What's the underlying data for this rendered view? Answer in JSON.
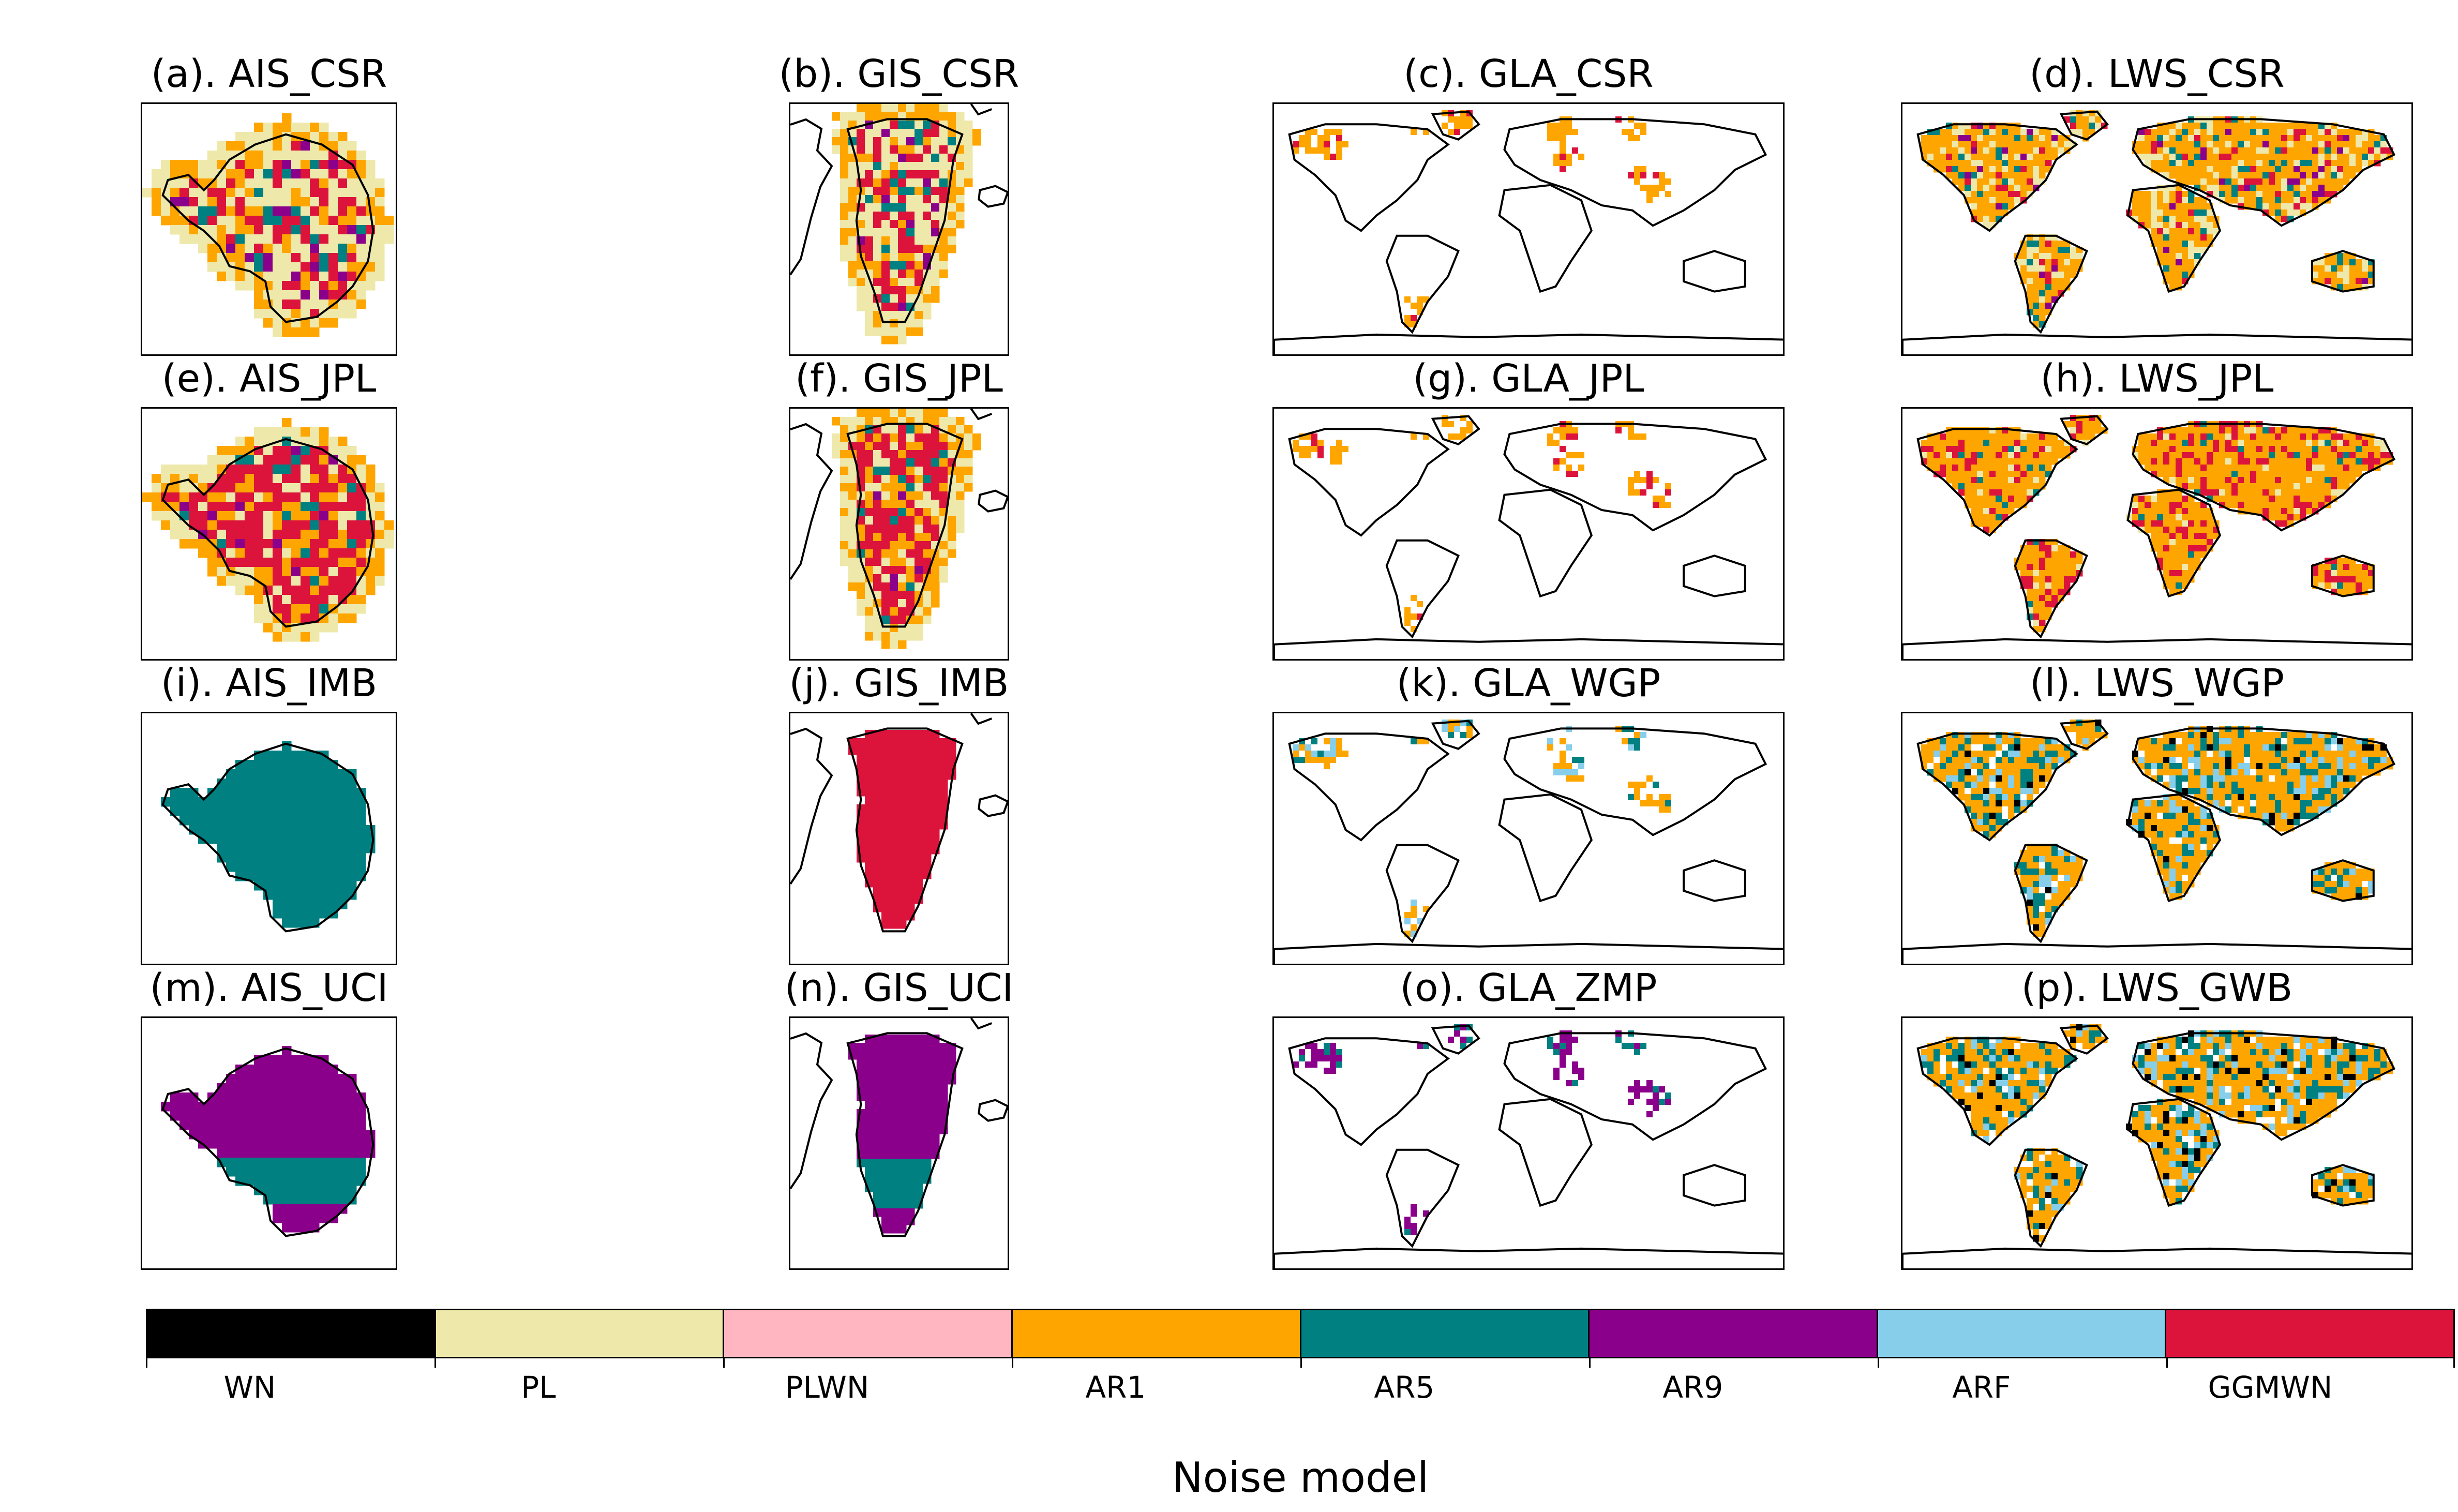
{
  "panels": [
    {
      "title": "(a). AIS_CSR",
      "kind": "ais",
      "pattern": "mix_csr"
    },
    {
      "title": "(b). GIS_CSR",
      "kind": "gis",
      "pattern": "mix_csr"
    },
    {
      "title": "(c). GLA_CSR",
      "kind": "world",
      "pattern": "gla_sparse"
    },
    {
      "title": "(d). LWS_CSR",
      "kind": "world",
      "pattern": "lws_mix"
    },
    {
      "title": "(e). AIS_JPL",
      "kind": "ais",
      "pattern": "mix_jpl"
    },
    {
      "title": "(f). GIS_JPL",
      "kind": "gis",
      "pattern": "mix_jpl"
    },
    {
      "title": "(g). GLA_JPL",
      "kind": "world",
      "pattern": "gla_sparse"
    },
    {
      "title": "(h). LWS_JPL",
      "kind": "world",
      "pattern": "lws_jpl"
    },
    {
      "title": "(i). AIS_IMB",
      "kind": "ais",
      "pattern": "solid_ar5"
    },
    {
      "title": "(j). GIS_IMB",
      "kind": "gis",
      "pattern": "solid_ggmwn"
    },
    {
      "title": "(k). GLA_WGP",
      "kind": "world",
      "pattern": "gla_wgp"
    },
    {
      "title": "(l). LWS_WGP",
      "kind": "world",
      "pattern": "lws_wgp"
    },
    {
      "title": "(m). AIS_UCI",
      "kind": "ais",
      "pattern": "uci"
    },
    {
      "title": "(n). GIS_UCI",
      "kind": "gis",
      "pattern": "uci"
    },
    {
      "title": "(o). GLA_ZMP",
      "kind": "world",
      "pattern": "gla_zmp"
    },
    {
      "title": "(p). LWS_GWB",
      "kind": "world",
      "pattern": "lws_gwb"
    }
  ],
  "legend": {
    "title": "Noise model",
    "categories": [
      {
        "label": "WN",
        "color": "#000000"
      },
      {
        "label": "PL",
        "color": "#EEE8AA"
      },
      {
        "label": "PLWN",
        "color": "#FFB6C1"
      },
      {
        "label": "AR1",
        "color": "#FFA500"
      },
      {
        "label": "AR5",
        "color": "#008080"
      },
      {
        "label": "AR9",
        "color": "#8B008B"
      },
      {
        "label": "ARF",
        "color": "#87CEEB"
      },
      {
        "label": "GGMWN",
        "color": "#DC143C"
      }
    ]
  }
}
